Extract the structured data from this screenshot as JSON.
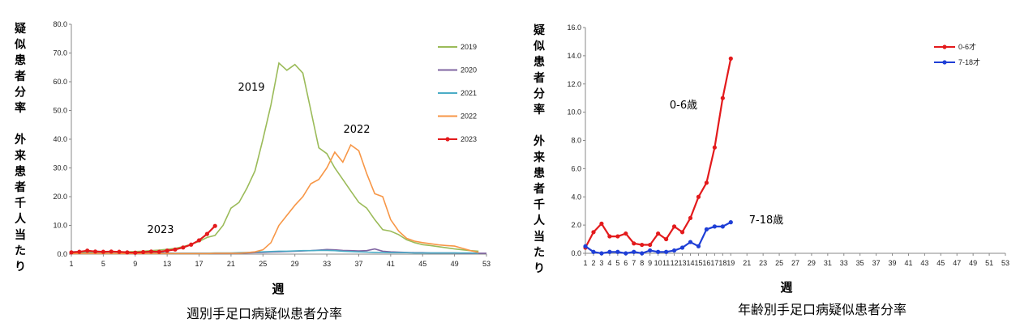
{
  "chart_data": [
    {
      "type": "line",
      "title": "週別手足口病疑似患者分率",
      "xlabel": "週",
      "ylabel_lines": [
        "疑",
        "似",
        "患",
        "者",
        "分",
        "率",
        "",
        "外",
        "来",
        "患",
        "者",
        "千",
        "人",
        "当",
        "た",
        "り"
      ],
      "xlim": [
        1,
        53
      ],
      "xticks": [
        1,
        5,
        9,
        13,
        17,
        21,
        25,
        29,
        33,
        37,
        41,
        45,
        49,
        53
      ],
      "ylim": [
        0,
        80
      ],
      "yticks": [
        "0.0",
        "10.0",
        "20.0",
        "30.0",
        "40.0",
        "50.0",
        "60.0",
        "70.0",
        "80.0"
      ],
      "grid": false,
      "legend_position": "right",
      "series": [
        {
          "name": "2019",
          "color": "#9bbb59",
          "markers": false,
          "x": [
            1,
            2,
            3,
            4,
            5,
            6,
            7,
            8,
            9,
            10,
            11,
            12,
            13,
            14,
            15,
            16,
            17,
            18,
            19,
            20,
            21,
            22,
            23,
            24,
            25,
            26,
            27,
            28,
            29,
            30,
            31,
            32,
            33,
            34,
            35,
            36,
            37,
            38,
            39,
            40,
            41,
            42,
            43,
            44,
            45,
            46,
            47,
            48,
            49,
            50,
            51,
            52
          ],
          "values": [
            0.6,
            0.5,
            0.6,
            0.7,
            0.7,
            0.8,
            0.8,
            0.8,
            0.9,
            1.0,
            1.2,
            1.4,
            1.7,
            2.0,
            2.6,
            3.4,
            4.4,
            5.8,
            6.5,
            10.0,
            16.0,
            18.0,
            23.0,
            29.0,
            40.0,
            52.0,
            66.5,
            64.0,
            66.0,
            63.0,
            50.0,
            37.0,
            35.0,
            30.0,
            26.0,
            22.0,
            18.0,
            16.0,
            12.0,
            8.5,
            8.0,
            6.8,
            5.0,
            4.0,
            3.3,
            3.0,
            2.6,
            2.2,
            1.8,
            1.5,
            1.2,
            1.0
          ]
        },
        {
          "name": "2020",
          "color": "#8064a2",
          "markers": false,
          "x": [
            1,
            2,
            3,
            4,
            5,
            6,
            7,
            8,
            9,
            10,
            11,
            12,
            13,
            14,
            15,
            16,
            17,
            18,
            19,
            20,
            21,
            22,
            23,
            24,
            25,
            26,
            27,
            28,
            29,
            30,
            31,
            32,
            33,
            34,
            35,
            36,
            37,
            38,
            39,
            40,
            41,
            42,
            43,
            44,
            45,
            46,
            47,
            48,
            49,
            50,
            51,
            52,
            53
          ],
          "values": [
            0.8,
            0.9,
            1.0,
            1.0,
            0.9,
            0.8,
            0.7,
            0.6,
            0.6,
            0.6,
            0.6,
            0.5,
            0.4,
            0.3,
            0.3,
            0.3,
            0.3,
            0.3,
            0.3,
            0.3,
            0.3,
            0.3,
            0.4,
            0.5,
            0.6,
            0.7,
            0.8,
            0.9,
            1.0,
            1.1,
            1.2,
            1.4,
            1.6,
            1.5,
            1.3,
            1.2,
            1.1,
            1.2,
            1.8,
            1.0,
            0.8,
            0.7,
            0.6,
            0.5,
            0.5,
            0.4,
            0.4,
            0.4,
            0.4,
            0.3,
            0.3,
            0.3,
            0.3
          ]
        },
        {
          "name": "2021",
          "color": "#4bacc6",
          "markers": false,
          "x": [
            1,
            2,
            3,
            4,
            5,
            6,
            7,
            8,
            9,
            10,
            11,
            12,
            13,
            14,
            15,
            16,
            17,
            18,
            19,
            20,
            21,
            22,
            23,
            24,
            25,
            26,
            27,
            28,
            29,
            30,
            31,
            32,
            33,
            34,
            35,
            36,
            37,
            38,
            39,
            40,
            41,
            42,
            43,
            44,
            45,
            46,
            47,
            48,
            49,
            50,
            51,
            52
          ],
          "values": [
            0.3,
            0.3,
            0.3,
            0.3,
            0.3,
            0.3,
            0.3,
            0.3,
            0.3,
            0.3,
            0.3,
            0.3,
            0.3,
            0.3,
            0.3,
            0.3,
            0.3,
            0.3,
            0.4,
            0.4,
            0.4,
            0.5,
            0.6,
            0.7,
            0.8,
            0.9,
            1.0,
            1.0,
            1.1,
            1.2,
            1.2,
            1.3,
            1.3,
            1.2,
            1.0,
            0.9,
            0.8,
            0.7,
            0.6,
            0.6,
            0.5,
            0.5,
            0.5,
            0.4,
            0.4,
            0.4,
            0.4,
            0.4,
            0.4,
            0.4,
            0.4,
            0.3
          ]
        },
        {
          "name": "2022",
          "color": "#f79646",
          "markers": false,
          "x": [
            1,
            2,
            3,
            4,
            5,
            6,
            7,
            8,
            9,
            10,
            11,
            12,
            13,
            14,
            15,
            16,
            17,
            18,
            19,
            20,
            21,
            22,
            23,
            24,
            25,
            26,
            27,
            28,
            29,
            30,
            31,
            32,
            33,
            34,
            35,
            36,
            37,
            38,
            39,
            40,
            41,
            42,
            43,
            44,
            45,
            46,
            47,
            48,
            49,
            50,
            51,
            52
          ],
          "values": [
            0.2,
            0.2,
            0.2,
            0.2,
            0.2,
            0.2,
            0.2,
            0.2,
            0.2,
            0.2,
            0.2,
            0.2,
            0.2,
            0.2,
            0.2,
            0.2,
            0.2,
            0.2,
            0.3,
            0.3,
            0.3,
            0.3,
            0.5,
            0.8,
            1.5,
            4.0,
            10.0,
            13.5,
            17.0,
            20.0,
            24.5,
            26.0,
            30.0,
            35.5,
            32.0,
            38.0,
            36.0,
            28.0,
            21.0,
            20.0,
            12.0,
            8.0,
            5.5,
            4.5,
            4.0,
            3.6,
            3.2,
            3.0,
            2.8,
            2.0,
            1.2,
            0.6
          ]
        },
        {
          "name": "2023",
          "color": "#e31a1c",
          "markers": true,
          "x": [
            1,
            2,
            3,
            4,
            5,
            6,
            7,
            8,
            9,
            10,
            11,
            12,
            13,
            14,
            15,
            16,
            17,
            18,
            19
          ],
          "values": [
            0.6,
            0.8,
            1.2,
            0.9,
            0.8,
            0.9,
            0.8,
            0.6,
            0.5,
            0.7,
            0.9,
            0.8,
            1.2,
            1.6,
            2.3,
            3.3,
            4.8,
            7.0,
            9.8
          ]
        }
      ],
      "annotations": [
        "2019",
        "2022",
        "2023"
      ]
    },
    {
      "type": "line",
      "title": "年齢別手足口病疑似患者分率",
      "xlabel": "週",
      "ylabel_lines": [
        "疑",
        "似",
        "患",
        "者",
        "分",
        "率",
        "",
        "外",
        "来",
        "患",
        "者",
        "千",
        "人",
        "当",
        "た",
        "り"
      ],
      "xlim": [
        1,
        53
      ],
      "xticks": [
        1,
        2,
        3,
        4,
        5,
        6,
        7,
        8,
        9,
        10,
        11,
        12,
        13,
        14,
        15,
        16,
        17,
        18,
        19,
        21,
        23,
        25,
        27,
        29,
        31,
        33,
        35,
        37,
        39,
        41,
        43,
        45,
        47,
        49,
        51,
        53
      ],
      "ylim": [
        0,
        16
      ],
      "yticks": [
        "0.0",
        "2.0",
        "4.0",
        "6.0",
        "8.0",
        "10.0",
        "12.0",
        "14.0",
        "16.0"
      ],
      "grid": false,
      "legend_position": "top-right",
      "series": [
        {
          "name": "0-6才",
          "color": "#e31a1c",
          "markers": true,
          "x": [
            1,
            2,
            3,
            4,
            5,
            6,
            7,
            8,
            9,
            10,
            11,
            12,
            13,
            14,
            15,
            16,
            17,
            18,
            19
          ],
          "values": [
            0.4,
            1.5,
            2.1,
            1.2,
            1.2,
            1.4,
            0.7,
            0.6,
            0.6,
            1.4,
            1.0,
            1.9,
            1.5,
            2.5,
            4.0,
            5.0,
            7.5,
            11.0,
            13.8
          ]
        },
        {
          "name": "7-18才",
          "color": "#1f3fd6",
          "markers": true,
          "x": [
            1,
            2,
            3,
            4,
            5,
            6,
            7,
            8,
            9,
            10,
            11,
            12,
            13,
            14,
            15,
            16,
            17,
            18,
            19
          ],
          "values": [
            0.5,
            0.1,
            0.0,
            0.1,
            0.1,
            0.0,
            0.1,
            0.0,
            0.2,
            0.1,
            0.1,
            0.2,
            0.4,
            0.8,
            0.5,
            1.7,
            1.9,
            1.9,
            2.2
          ]
        }
      ],
      "annotations": [
        "0-6歳",
        "7-18歳"
      ]
    }
  ]
}
